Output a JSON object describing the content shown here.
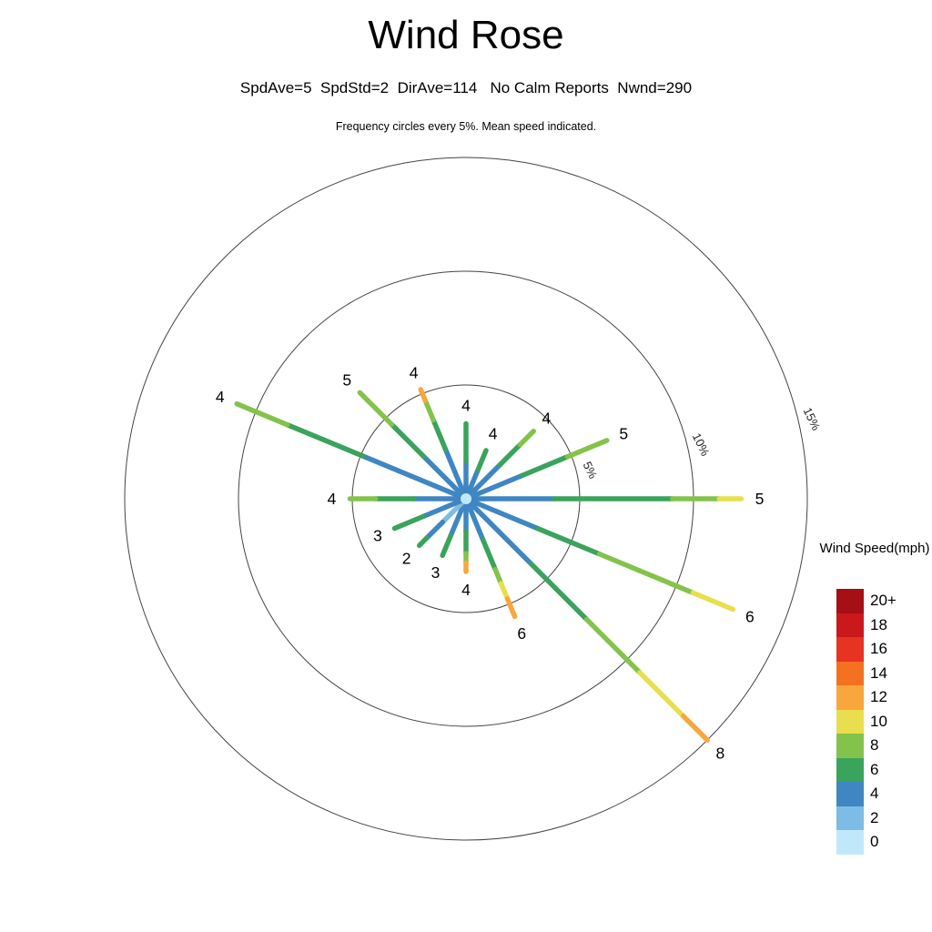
{
  "page": {
    "title": "Wind Rose",
    "subtitle": "SpdAve=5  SpdStd=2  DirAve=114   No Calm Reports  Nwnd=290",
    "note": "Frequency circles every 5%. Mean speed indicated."
  },
  "legend": {
    "title": "Wind Speed(mph)",
    "entries": [
      {
        "label": "20+",
        "speed": 20,
        "color": "#a50f15"
      },
      {
        "label": "18",
        "speed": 18,
        "color": "#cb181d"
      },
      {
        "label": "16",
        "speed": 16,
        "color": "#e73322"
      },
      {
        "label": "14",
        "speed": 14,
        "color": "#f37121"
      },
      {
        "label": "12",
        "speed": 12,
        "color": "#f9a63d"
      },
      {
        "label": "10",
        "speed": 10,
        "color": "#e9de4d"
      },
      {
        "label": "8",
        "speed": 8,
        "color": "#84c34b"
      },
      {
        "label": "6",
        "speed": 6,
        "color": "#3aa35c"
      },
      {
        "label": "4",
        "speed": 4,
        "color": "#3f86c3"
      },
      {
        "label": "2",
        "speed": 2,
        "color": "#7dbce4"
      },
      {
        "label": "0",
        "speed": 0,
        "color": "#c1e8fa"
      }
    ]
  },
  "chart_data": {
    "type": "wind-rose",
    "title": "Wind Rose",
    "stats": {
      "spd_ave": 5,
      "spd_std": 2,
      "dir_ave": 114,
      "calm": "No Calm Reports",
      "nwnd": 290
    },
    "speed_unit": "mph",
    "pct_per_ring": 5,
    "frequency_rings_pct": [
      5,
      10,
      15
    ],
    "ring_labels": [
      "5%",
      "10%",
      "15%"
    ],
    "ring_label_angle_deg": 77,
    "ring_label_rotation_deg": 64,
    "directions": [
      {
        "dir": "N",
        "angle_deg": 0,
        "frequency_pct": 3.3,
        "mean_speed": 4,
        "segments": [
          [
            0,
            0.5,
            4
          ],
          [
            0.5,
            1,
            6
          ]
        ]
      },
      {
        "dir": "NNE",
        "angle_deg": 22.5,
        "frequency_pct": 2.3,
        "mean_speed": 4,
        "segments": [
          [
            0,
            0.6,
            4
          ],
          [
            0.6,
            1,
            6
          ]
        ]
      },
      {
        "dir": "NE",
        "angle_deg": 45,
        "frequency_pct": 4.2,
        "mean_speed": 4,
        "segments": [
          [
            0,
            0.5,
            4
          ],
          [
            0.5,
            0.8,
            6
          ],
          [
            0.8,
            1,
            8
          ]
        ]
      },
      {
        "dir": "ENE",
        "angle_deg": 67.5,
        "frequency_pct": 6.7,
        "mean_speed": 5,
        "segments": [
          [
            0,
            0.4,
            4
          ],
          [
            0.4,
            0.72,
            6
          ],
          [
            0.72,
            1,
            8
          ]
        ]
      },
      {
        "dir": "E",
        "angle_deg": 90,
        "frequency_pct": 12.1,
        "mean_speed": 5,
        "segments": [
          [
            0,
            0.32,
            4
          ],
          [
            0.32,
            0.75,
            6
          ],
          [
            0.75,
            0.92,
            8
          ],
          [
            0.92,
            1,
            10
          ]
        ]
      },
      {
        "dir": "ESE",
        "angle_deg": 112.5,
        "frequency_pct": 12.7,
        "mean_speed": 6,
        "segments": [
          [
            0,
            0.27,
            4
          ],
          [
            0.27,
            0.5,
            6
          ],
          [
            0.5,
            0.85,
            8
          ],
          [
            0.85,
            1,
            10
          ]
        ]
      },
      {
        "dir": "SE",
        "angle_deg": 135,
        "frequency_pct": 15.0,
        "mean_speed": 8,
        "segments": [
          [
            0,
            0.27,
            4
          ],
          [
            0.27,
            0.5,
            6
          ],
          [
            0.5,
            0.72,
            8
          ],
          [
            0.72,
            0.9,
            10
          ],
          [
            0.9,
            1,
            12
          ]
        ]
      },
      {
        "dir": "SSE",
        "angle_deg": 157.5,
        "frequency_pct": 5.6,
        "mean_speed": 6,
        "segments": [
          [
            0,
            0.35,
            4
          ],
          [
            0.35,
            0.6,
            6
          ],
          [
            0.6,
            0.72,
            8
          ],
          [
            0.72,
            0.85,
            10
          ],
          [
            0.85,
            1,
            12
          ]
        ]
      },
      {
        "dir": "S",
        "angle_deg": 180,
        "frequency_pct": 3.2,
        "mean_speed": 4,
        "segments": [
          [
            0,
            0.45,
            4
          ],
          [
            0.45,
            0.75,
            6
          ],
          [
            0.75,
            0.88,
            8
          ],
          [
            0.88,
            1,
            12
          ]
        ]
      },
      {
        "dir": "SSW",
        "angle_deg": 202.5,
        "frequency_pct": 2.7,
        "mean_speed": 3,
        "segments": [
          [
            0,
            0.65,
            4
          ],
          [
            0.65,
            1,
            6
          ]
        ]
      },
      {
        "dir": "SW",
        "angle_deg": 225,
        "frequency_pct": 2.9,
        "mean_speed": 2,
        "segments": [
          [
            0,
            0.5,
            2
          ],
          [
            0.5,
            0.85,
            4
          ],
          [
            0.85,
            1,
            6
          ]
        ]
      },
      {
        "dir": "WSW",
        "angle_deg": 247.5,
        "frequency_pct": 3.4,
        "mean_speed": 3,
        "segments": [
          [
            0,
            0.6,
            4
          ],
          [
            0.6,
            1,
            6
          ]
        ]
      },
      {
        "dir": "W",
        "angle_deg": 270,
        "frequency_pct": 5.1,
        "mean_speed": 4,
        "segments": [
          [
            0,
            0.45,
            4
          ],
          [
            0.45,
            0.78,
            6
          ],
          [
            0.78,
            1,
            8
          ]
        ]
      },
      {
        "dir": "WNW",
        "angle_deg": 292.5,
        "frequency_pct": 10.9,
        "mean_speed": 4,
        "segments": [
          [
            0,
            0.45,
            4
          ],
          [
            0.45,
            0.78,
            6
          ],
          [
            0.78,
            1,
            8
          ]
        ]
      },
      {
        "dir": "NW",
        "angle_deg": 315,
        "frequency_pct": 6.6,
        "mean_speed": 5,
        "segments": [
          [
            0,
            0.4,
            4
          ],
          [
            0.4,
            0.7,
            6
          ],
          [
            0.7,
            1,
            8
          ]
        ]
      },
      {
        "dir": "NNW",
        "angle_deg": 337.5,
        "frequency_pct": 5.2,
        "mean_speed": 4,
        "segments": [
          [
            0,
            0.45,
            4
          ],
          [
            0.45,
            0.72,
            6
          ],
          [
            0.72,
            0.9,
            8
          ],
          [
            0.9,
            1,
            12
          ]
        ]
      }
    ]
  },
  "colors": {
    "ring": "#444444",
    "text": "#000000",
    "background": "#ffffff"
  }
}
